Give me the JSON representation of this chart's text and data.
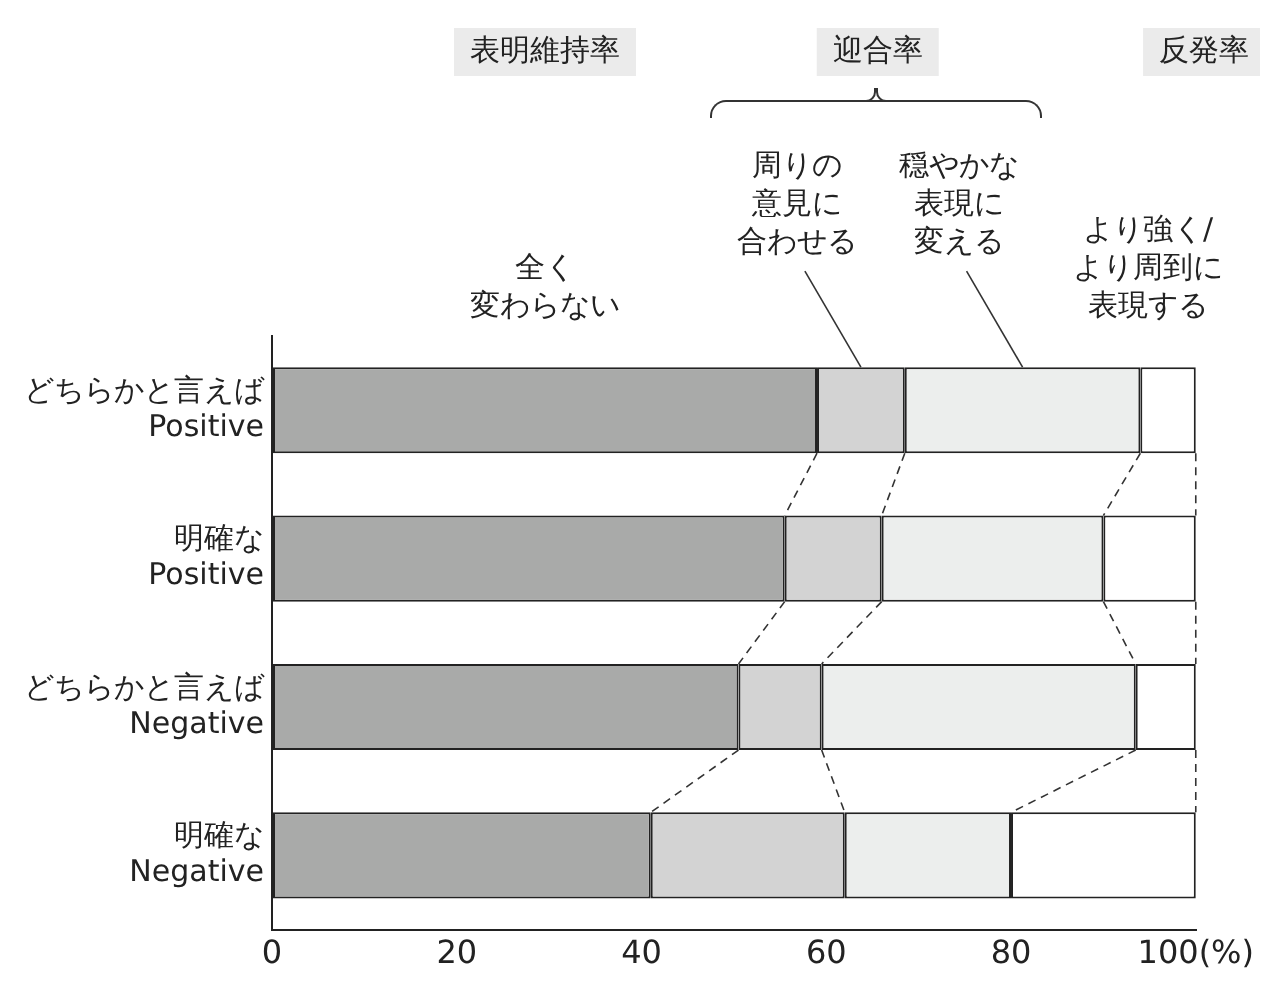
{
  "chart_data": {
    "type": "bar",
    "orientation": "horizontal",
    "stacked": true,
    "categories": [
      "どちらかと言えば\nPositive",
      "明確な\nPositive",
      "どちらかと言えば\nNegative",
      "明確な\nNegative"
    ],
    "series": [
      {
        "name": "全く変わらない",
        "color": "#a9aaa9",
        "values": [
          59,
          55.5,
          50.5,
          41
        ]
      },
      {
        "name": "周りの意見に合わせる",
        "color": "#d3d3d3",
        "values": [
          9.5,
          10.5,
          9,
          21
        ]
      },
      {
        "name": "穏やかな表現に変える",
        "color": "#eceeed",
        "values": [
          25.5,
          24,
          34,
          18
        ]
      },
      {
        "name": "より強く/より周到に表現する",
        "color": "#ffffff",
        "values": [
          6,
          10,
          6.5,
          20
        ]
      }
    ],
    "xlim": [
      0,
      100
    ],
    "xticks": [
      0,
      20,
      40,
      60,
      80,
      {
        "value": 100,
        "label": "100(%)"
      }
    ],
    "annotations": [
      "表明維持率",
      "迎合率",
      "反発率"
    ],
    "grid": false,
    "legend": false
  }
}
